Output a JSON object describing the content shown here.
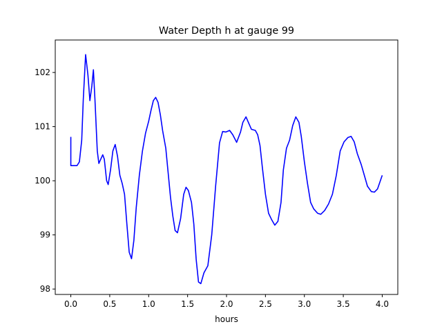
{
  "chart_data": {
    "type": "line",
    "title": "Water Depth h at gauge 99",
    "xlabel": "hours",
    "ylabel": "",
    "xlim": [
      -0.2,
      4.2
    ],
    "ylim": [
      97.9,
      102.6
    ],
    "grid": false,
    "legend": null,
    "x_ticks": [
      0.0,
      0.5,
      1.0,
      1.5,
      2.0,
      2.5,
      3.0,
      3.5,
      4.0
    ],
    "x_tick_labels": [
      "0.0",
      "0.5",
      "1.0",
      "1.5",
      "2.0",
      "2.5",
      "3.0",
      "3.5",
      "4.0"
    ],
    "y_ticks": [
      98,
      99,
      100,
      101,
      102
    ],
    "y_tick_labels": [
      "98",
      "99",
      "100",
      "101",
      "102"
    ],
    "series": [
      {
        "color": "#0000ff",
        "points": [
          [
            0.0,
            100.81
          ],
          [
            0.0,
            100.28
          ],
          [
            0.03,
            100.28
          ],
          [
            0.08,
            100.28
          ],
          [
            0.11,
            100.35
          ],
          [
            0.14,
            100.75
          ],
          [
            0.16,
            101.5
          ],
          [
            0.19,
            102.33
          ],
          [
            0.22,
            101.95
          ],
          [
            0.245,
            101.48
          ],
          [
            0.27,
            101.75
          ],
          [
            0.29,
            102.05
          ],
          [
            0.31,
            101.5
          ],
          [
            0.34,
            100.55
          ],
          [
            0.36,
            100.32
          ],
          [
            0.385,
            100.4
          ],
          [
            0.41,
            100.48
          ],
          [
            0.43,
            100.4
          ],
          [
            0.46,
            100.0
          ],
          [
            0.48,
            99.93
          ],
          [
            0.51,
            100.2
          ],
          [
            0.54,
            100.55
          ],
          [
            0.57,
            100.67
          ],
          [
            0.6,
            100.45
          ],
          [
            0.63,
            100.1
          ],
          [
            0.66,
            99.95
          ],
          [
            0.69,
            99.75
          ],
          [
            0.72,
            99.2
          ],
          [
            0.75,
            98.68
          ],
          [
            0.78,
            98.56
          ],
          [
            0.81,
            98.9
          ],
          [
            0.84,
            99.5
          ],
          [
            0.88,
            100.1
          ],
          [
            0.92,
            100.55
          ],
          [
            0.96,
            100.88
          ],
          [
            1.0,
            101.1
          ],
          [
            1.03,
            101.3
          ],
          [
            1.06,
            101.48
          ],
          [
            1.09,
            101.54
          ],
          [
            1.12,
            101.45
          ],
          [
            1.15,
            101.22
          ],
          [
            1.18,
            100.92
          ],
          [
            1.22,
            100.6
          ],
          [
            1.25,
            100.15
          ],
          [
            1.28,
            99.7
          ],
          [
            1.31,
            99.35
          ],
          [
            1.34,
            99.08
          ],
          [
            1.37,
            99.04
          ],
          [
            1.41,
            99.3
          ],
          [
            1.45,
            99.75
          ],
          [
            1.48,
            99.88
          ],
          [
            1.51,
            99.82
          ],
          [
            1.55,
            99.6
          ],
          [
            1.58,
            99.2
          ],
          [
            1.61,
            98.55
          ],
          [
            1.64,
            98.13
          ],
          [
            1.67,
            98.1
          ],
          [
            1.71,
            98.3
          ],
          [
            1.76,
            98.43
          ],
          [
            1.81,
            99.0
          ],
          [
            1.86,
            99.9
          ],
          [
            1.91,
            100.7
          ],
          [
            1.95,
            100.91
          ],
          [
            1.99,
            100.9
          ],
          [
            2.04,
            100.93
          ],
          [
            2.08,
            100.85
          ],
          [
            2.13,
            100.71
          ],
          [
            2.18,
            100.9
          ],
          [
            2.21,
            101.08
          ],
          [
            2.25,
            101.18
          ],
          [
            2.28,
            101.08
          ],
          [
            2.32,
            100.95
          ],
          [
            2.37,
            100.93
          ],
          [
            2.4,
            100.85
          ],
          [
            2.43,
            100.65
          ],
          [
            2.46,
            100.25
          ],
          [
            2.5,
            99.75
          ],
          [
            2.54,
            99.4
          ],
          [
            2.58,
            99.28
          ],
          [
            2.62,
            99.18
          ],
          [
            2.66,
            99.25
          ],
          [
            2.7,
            99.6
          ],
          [
            2.73,
            100.2
          ],
          [
            2.77,
            100.6
          ],
          [
            2.81,
            100.75
          ],
          [
            2.85,
            101.02
          ],
          [
            2.89,
            101.18
          ],
          [
            2.93,
            101.08
          ],
          [
            2.96,
            100.82
          ],
          [
            3.0,
            100.35
          ],
          [
            3.04,
            99.95
          ],
          [
            3.08,
            99.6
          ],
          [
            3.12,
            99.48
          ],
          [
            3.17,
            99.4
          ],
          [
            3.21,
            99.38
          ],
          [
            3.26,
            99.45
          ],
          [
            3.31,
            99.57
          ],
          [
            3.36,
            99.75
          ],
          [
            3.41,
            100.1
          ],
          [
            3.46,
            100.55
          ],
          [
            3.51,
            100.72
          ],
          [
            3.56,
            100.8
          ],
          [
            3.6,
            100.82
          ],
          [
            3.64,
            100.72
          ],
          [
            3.68,
            100.5
          ],
          [
            3.73,
            100.3
          ],
          [
            3.77,
            100.1
          ],
          [
            3.81,
            99.9
          ],
          [
            3.86,
            99.8
          ],
          [
            3.9,
            99.79
          ],
          [
            3.94,
            99.85
          ],
          [
            4.0,
            100.1
          ]
        ]
      }
    ]
  }
}
